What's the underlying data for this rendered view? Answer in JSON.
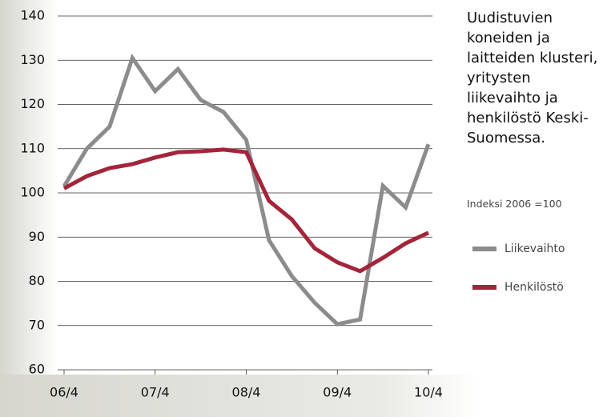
{
  "chart_data": {
    "type": "line",
    "title": "Uudistuvien koneiden ja laitteiden klusteri, yritysten liikevaihto ja henkilöstö Keski-Suomessa.",
    "subtitle": "Indeksi 2006 =100",
    "categories": [
      "06/4",
      null,
      null,
      null,
      "07/4",
      null,
      null,
      null,
      "08/4",
      null,
      null,
      null,
      "09/4",
      null,
      null,
      null,
      "10/4"
    ],
    "series": [
      {
        "name": "Liikevaihto",
        "color": "#8c8c8c",
        "values": [
          101.5,
          110,
          115,
          130.5,
          123,
          128,
          121,
          118.3,
          112,
          89.3,
          81.2,
          75.2,
          70.3,
          71.4,
          101.6,
          96.7,
          111
        ]
      },
      {
        "name": "Henkilöstö",
        "color": "#a3253a",
        "values": [
          101,
          103.8,
          105.6,
          106.5,
          108,
          109.2,
          109.4,
          109.8,
          109.2,
          98.2,
          94,
          87.5,
          84.3,
          82.3,
          85.3,
          88.6,
          91
        ]
      }
    ],
    "ylim": [
      60,
      140
    ],
    "yticks": [
      60,
      70,
      80,
      90,
      100,
      110,
      120,
      130,
      140
    ],
    "grid": true
  }
}
